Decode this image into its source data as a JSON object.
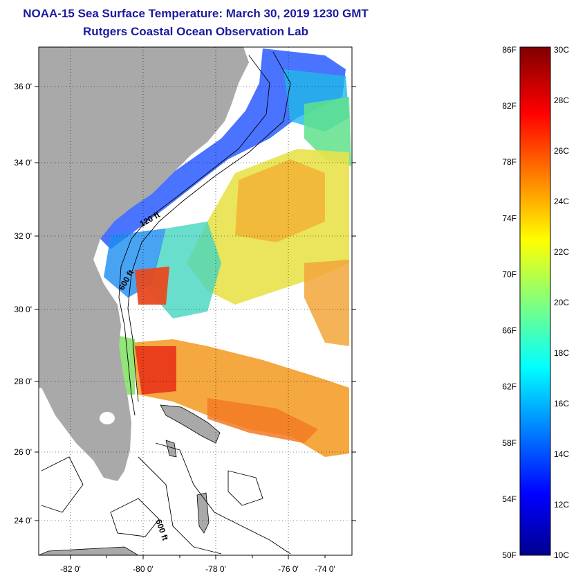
{
  "title": "NOAA-15 Sea Surface Temperature:  March 30, 2019 1230 GMT",
  "subtitle": "Rutgers Coastal Ocean Observation Lab",
  "map": {
    "lon_labels": [
      "-82 0'",
      "-80 0'",
      "-78 0'",
      "-76 0'",
      "-74 0'"
    ],
    "lat_labels": [
      "36 0'",
      "34 0'",
      "32 0'",
      "30 0'",
      "28 0'",
      "26 0'",
      "24 0'"
    ],
    "contour_labels": [
      "120 ft",
      "600 ft",
      "600 ft"
    ]
  },
  "colorbar": {
    "f_labels": [
      "86F",
      "82F",
      "78F",
      "74F",
      "70F",
      "66F",
      "62F",
      "58F",
      "54F",
      "50F"
    ],
    "c_labels": [
      "30C",
      "28C",
      "26C",
      "24C",
      "22C",
      "20C",
      "18C",
      "16C",
      "14C",
      "12C",
      "10C"
    ],
    "min_c": 10,
    "max_c": 30
  },
  "colors": {
    "land": "#a9a9a9",
    "title": "#1a1aa0"
  }
}
